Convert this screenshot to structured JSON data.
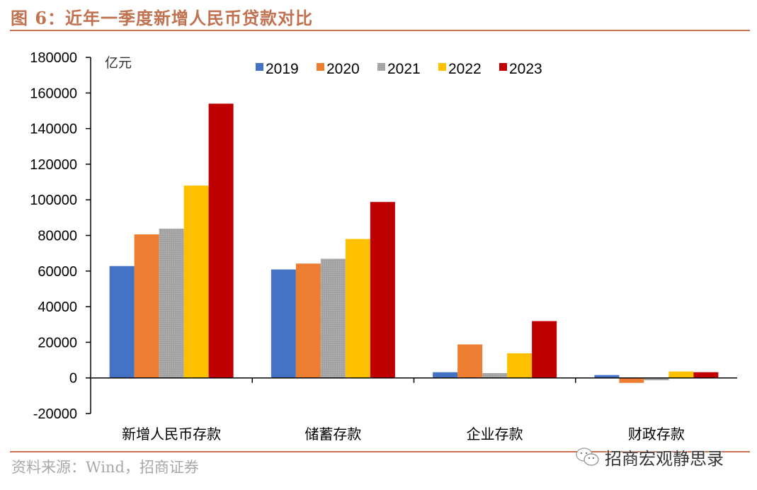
{
  "header": {
    "title": "图 6：近年一季度新增人民币贷款对比"
  },
  "footer": {
    "source": "资料来源：Wind，招商证券",
    "watermark": "招商宏观静思录",
    "watermark_icon": "wechat-icon"
  },
  "chart_data": {
    "type": "bar",
    "title": "近年一季度新增人民币贷款对比",
    "unit_label": "亿元",
    "xlabel": "",
    "ylabel": "亿元",
    "ylim": [
      -20000,
      180000
    ],
    "yticks": [
      -20000,
      0,
      20000,
      40000,
      60000,
      80000,
      100000,
      120000,
      140000,
      160000,
      180000
    ],
    "ytick_labels": [
      "-20000",
      "0",
      "20000",
      "40000",
      "60000",
      "80000",
      "100000",
      "120000",
      "140000",
      "160000",
      "180000"
    ],
    "grid": false,
    "legend_position": "top-center",
    "categories": [
      "新增人民币存款",
      "储蓄存款",
      "企业存款",
      "财政存款"
    ],
    "series": [
      {
        "name": "2019",
        "color": "#4472c4",
        "values": [
          62800,
          60900,
          3200,
          1600
        ]
      },
      {
        "name": "2020",
        "color": "#ed7d31",
        "values": [
          80600,
          64200,
          18800,
          -2800
        ]
      },
      {
        "name": "2021",
        "color": "#a5a5a5",
        "values": [
          83800,
          66900,
          2700,
          -1300
        ]
      },
      {
        "name": "2022",
        "color": "#ffc000",
        "values": [
          108000,
          78000,
          13800,
          3600
        ]
      },
      {
        "name": "2023",
        "color": "#c00000",
        "values": [
          154000,
          98800,
          31900,
          3200
        ]
      }
    ]
  }
}
